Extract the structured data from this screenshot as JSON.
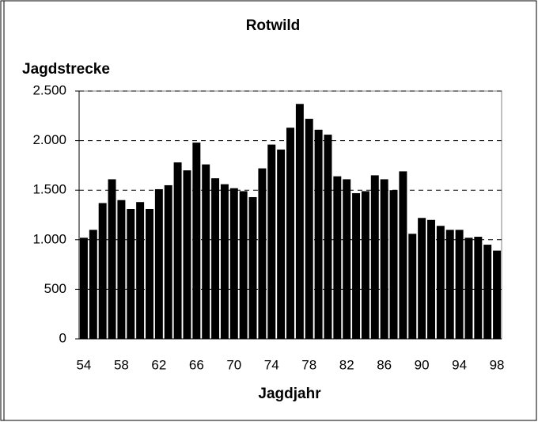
{
  "chart_data": {
    "type": "bar",
    "title": "Rotwild",
    "y_label": "Jagdstrecke",
    "x_label": "Jagdjahr",
    "categories": [
      "54",
      null,
      null,
      null,
      "58",
      null,
      null,
      null,
      "62",
      null,
      null,
      null,
      "66",
      null,
      null,
      null,
      "70",
      null,
      null,
      null,
      "74",
      null,
      null,
      null,
      "78",
      null,
      null,
      null,
      "82",
      null,
      null,
      null,
      "86",
      null,
      null,
      null,
      "90",
      null,
      null,
      null,
      "94",
      null,
      null,
      null,
      "98"
    ],
    "values": [
      1020,
      1100,
      1370,
      1610,
      1400,
      1310,
      1380,
      1310,
      1510,
      1550,
      1780,
      1700,
      1980,
      1760,
      1620,
      1560,
      1520,
      1490,
      1430,
      1720,
      1960,
      1910,
      2130,
      2370,
      2220,
      2110,
      2060,
      1640,
      1610,
      1470,
      1490,
      1650,
      1610,
      1500,
      1690,
      1060,
      1220,
      1200,
      1140,
      1100,
      1100,
      1020,
      1030,
      950,
      890
    ],
    "color": "#000000",
    "ylim": [
      0,
      2500
    ],
    "yticks": [
      0,
      500,
      {
        "value": 1000,
        "label": "1.000"
      },
      {
        "value": 1500,
        "label": "1.500"
      },
      {
        "value": 2000,
        "label": "2.000"
      },
      {
        "value": 2500,
        "label": "2.500"
      }
    ],
    "grid": true
  }
}
